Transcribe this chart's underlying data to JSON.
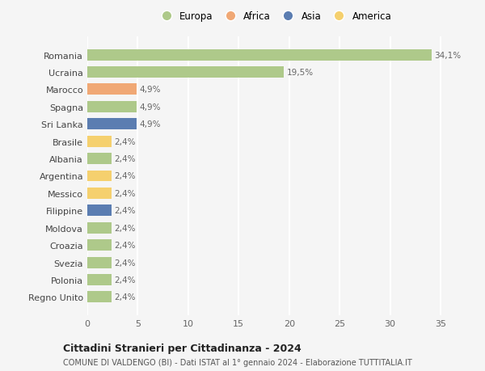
{
  "countries": [
    "Romania",
    "Ucraina",
    "Marocco",
    "Spagna",
    "Sri Lanka",
    "Brasile",
    "Albania",
    "Argentina",
    "Messico",
    "Filippine",
    "Moldova",
    "Croazia",
    "Svezia",
    "Polonia",
    "Regno Unito"
  ],
  "values": [
    34.1,
    19.5,
    4.9,
    4.9,
    4.9,
    2.4,
    2.4,
    2.4,
    2.4,
    2.4,
    2.4,
    2.4,
    2.4,
    2.4,
    2.4
  ],
  "labels": [
    "34,1%",
    "19,5%",
    "4,9%",
    "4,9%",
    "4,9%",
    "2,4%",
    "2,4%",
    "2,4%",
    "2,4%",
    "2,4%",
    "2,4%",
    "2,4%",
    "2,4%",
    "2,4%",
    "2,4%"
  ],
  "continents": [
    "Europa",
    "Europa",
    "Africa",
    "Europa",
    "Asia",
    "America",
    "Europa",
    "America",
    "America",
    "Asia",
    "Europa",
    "Europa",
    "Europa",
    "Europa",
    "Europa"
  ],
  "colors": {
    "Europa": "#aec98a",
    "Africa": "#f0a875",
    "Asia": "#5b7db1",
    "America": "#f5d06e"
  },
  "legend_order": [
    "Europa",
    "Africa",
    "Asia",
    "America"
  ],
  "title_bold": "Cittadini Stranieri per Cittadinanza - 2024",
  "subtitle": "COMUNE DI VALDENGO (BI) - Dati ISTAT al 1° gennaio 2024 - Elaborazione TUTTITALIA.IT",
  "xlim": [
    0,
    37
  ],
  "xticks": [
    0,
    5,
    10,
    15,
    20,
    25,
    30,
    35
  ],
  "background_color": "#f5f5f5"
}
